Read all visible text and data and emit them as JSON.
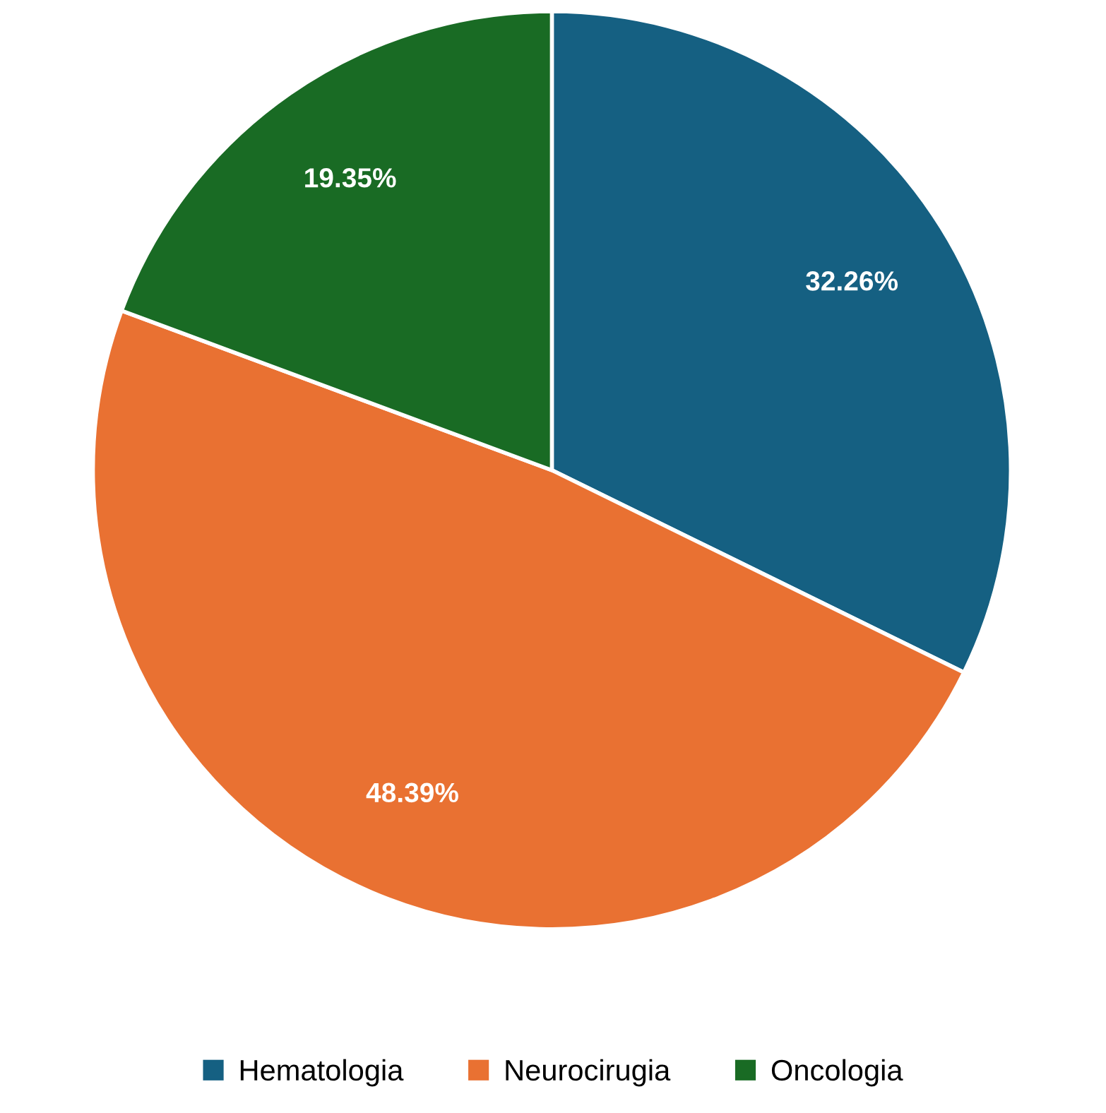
{
  "chart_data": {
    "type": "pie",
    "categories": [
      "Hematologia",
      "Neurocirugia",
      "Oncologia"
    ],
    "values": [
      32.26,
      48.39,
      19.35
    ],
    "colors": [
      "#156082",
      "#e97132",
      "#196b24"
    ],
    "value_labels": [
      "32.26%",
      "48.39%",
      "19.35%"
    ],
    "legend": "bottom"
  }
}
